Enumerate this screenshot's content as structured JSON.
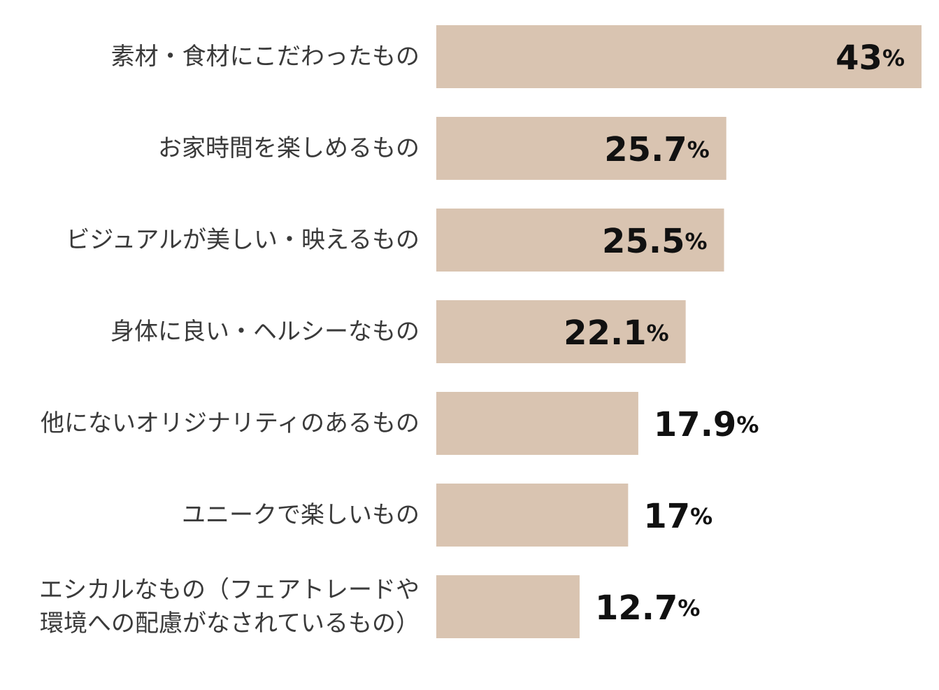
{
  "chart_data": {
    "type": "bar",
    "orientation": "horizontal",
    "title": "",
    "xlabel": "",
    "ylabel": "",
    "unit": "%",
    "xlim": [
      0,
      43
    ],
    "grid": false,
    "bar_color": "#d9c4b1",
    "text_color": "#111111",
    "label_color": "#3a3a3a",
    "categories": [
      [
        "素材・食材にこだわったもの"
      ],
      [
        "お家時間を楽しめるもの"
      ],
      [
        "ビジュアルが美しい・映えるもの"
      ],
      [
        "身体に良い・ヘルシーなもの"
      ],
      [
        "他にないオリジナリティのあるもの"
      ],
      [
        "ユニークで楽しいもの"
      ],
      [
        "エシカルなもの（フェアトレードや",
        "環境への配慮がなされているもの）"
      ]
    ],
    "values": [
      43,
      25.7,
      25.5,
      22.1,
      17.9,
      17,
      12.7
    ],
    "value_labels": [
      "43",
      "25.7",
      "25.5",
      "22.1",
      "17.9",
      "17",
      "12.7"
    ],
    "label_inside": [
      true,
      true,
      true,
      true,
      false,
      false,
      false
    ]
  }
}
